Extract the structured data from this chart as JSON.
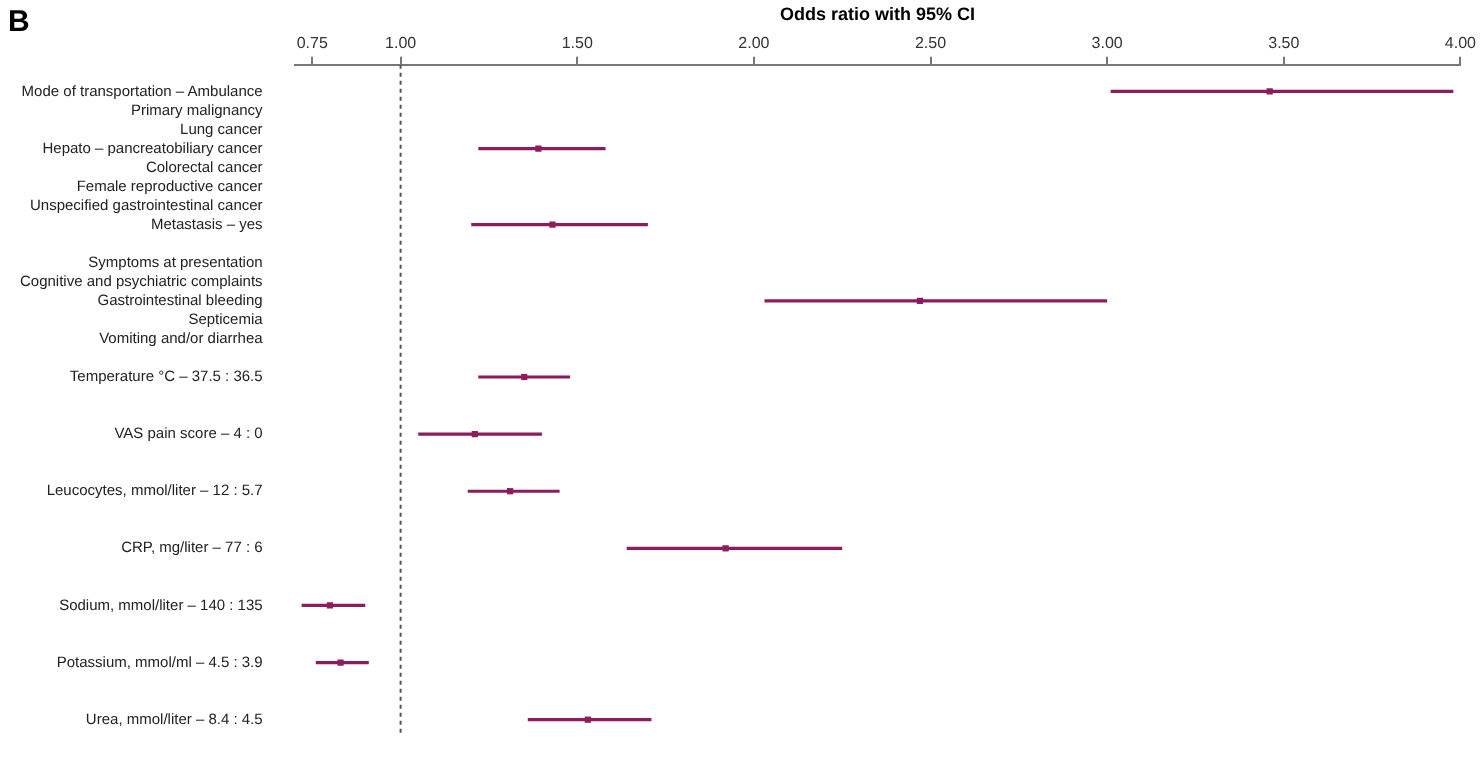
{
  "chart_data": {
    "type": "scatter",
    "orientation": "horizontal",
    "xlabel": "Odds ratio with 95% CI",
    "annotations": [
      "B"
    ],
    "categories": [
      "Mode of transportation – Ambulance",
      "Primary malignancy",
      "Lung cancer",
      "Hepato – pancreatobiliary cancer",
      "Colorectal cancer",
      "Female reproductive cancer",
      "Unspecified gastrointestinal cancer",
      "Metastasis – yes",
      null,
      "Symptoms at presentation",
      "Cognitive and psychiatric complaints",
      "Gastrointestinal bleeding",
      "Septicemia",
      "Vomiting and/or diarrhea",
      null,
      "Temperature °C – 37.5 : 36.5",
      null,
      null,
      "VAS pain score – 4 : 0",
      null,
      null,
      "Leucocytes, mmol/liter – 12 : 5.7",
      null,
      null,
      "CRP, mg/liter – 77 : 6",
      null,
      null,
      "Sodium, mmol/liter – 140 : 135",
      null,
      null,
      "Potassium, mmol/ml – 4.5 : 3.9",
      null,
      null,
      "Urea, mmol/liter – 8.4 : 4.5"
    ],
    "values": [
      3.46,
      null,
      null,
      1.39,
      null,
      null,
      null,
      1.43,
      null,
      null,
      null,
      2.47,
      null,
      null,
      null,
      1.35,
      null,
      null,
      1.21,
      null,
      null,
      1.31,
      null,
      null,
      1.92,
      null,
      null,
      0.8,
      null,
      null,
      0.83,
      null,
      null,
      1.53
    ],
    "errors": [
      [
        3.01,
        3.98
      ],
      null,
      null,
      [
        1.22,
        1.58
      ],
      null,
      null,
      null,
      [
        1.2,
        1.7
      ],
      null,
      null,
      null,
      [
        2.03,
        3.0
      ],
      null,
      null,
      null,
      [
        1.22,
        1.48
      ],
      null,
      null,
      [
        1.05,
        1.4
      ],
      null,
      null,
      [
        1.19,
        1.45
      ],
      null,
      null,
      [
        1.64,
        2.25
      ],
      null,
      null,
      [
        0.72,
        0.9
      ],
      null,
      null,
      [
        0.76,
        0.91
      ],
      null,
      null,
      [
        1.36,
        1.71
      ]
    ],
    "color": "#8c1c5c",
    "marker": "square",
    "xlim": [
      0.7,
      4.0
    ],
    "xticks": [
      {
        "value": 0.75,
        "label": "0.75"
      },
      {
        "value": 1,
        "label": "1.00"
      },
      {
        "value": 1.5,
        "label": "1.50"
      },
      {
        "value": 2,
        "label": "2.00"
      },
      {
        "value": 2.5,
        "label": "2.50"
      },
      {
        "value": 3,
        "label": "3.00"
      },
      {
        "value": 3.5,
        "label": "3.50"
      },
      {
        "value": 4,
        "label": "4.00"
      }
    ],
    "ref_lines": [
      {
        "axis": "x",
        "value": 1,
        "line_style": "dotted",
        "color": "#555555"
      }
    ]
  }
}
